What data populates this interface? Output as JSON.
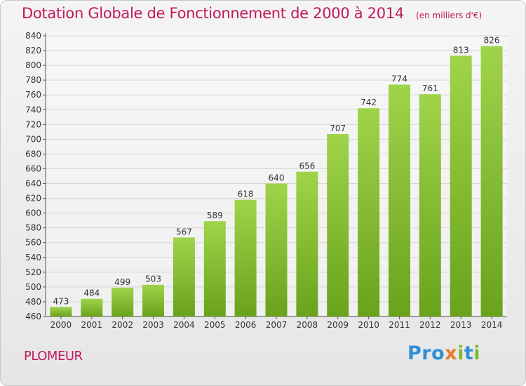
{
  "header": {
    "title": "Dotation Globale de Fonctionnement de 2000 à 2014",
    "subtitle": "(en milliers d'€)"
  },
  "footer": {
    "commune": "PLOMEUR",
    "brand_letters": [
      {
        "char": "P",
        "color": "#2d8fd6"
      },
      {
        "char": "r",
        "color": "#2d8fd6"
      },
      {
        "char": "o",
        "color": "#2d8fd6"
      },
      {
        "char": "x",
        "color": "#e8792a"
      },
      {
        "char": "i",
        "color": "#7bbf2a"
      },
      {
        "char": "t",
        "color": "#2d8fd6"
      },
      {
        "char": "i",
        "color": "#7bbf2a"
      }
    ]
  },
  "colors": {
    "bar_light": "#9fd44a",
    "bar_dark": "#6aa21c",
    "grid": "#d6d6d6",
    "text": "#333333",
    "accent": "#c2185b"
  },
  "chart_data": {
    "type": "bar",
    "categories": [
      "2000",
      "2001",
      "2002",
      "2003",
      "2004",
      "2005",
      "2006",
      "2007",
      "2008",
      "2009",
      "2010",
      "2011",
      "2012",
      "2013",
      "2014"
    ],
    "values": [
      473,
      484,
      499,
      503,
      567,
      589,
      618,
      640,
      656,
      707,
      742,
      774,
      761,
      813,
      826
    ],
    "ylim": [
      460,
      840
    ],
    "yticks": [
      460,
      480,
      500,
      520,
      540,
      560,
      580,
      600,
      620,
      640,
      660,
      680,
      700,
      720,
      740,
      760,
      780,
      800,
      820,
      840
    ],
    "grid": true
  }
}
